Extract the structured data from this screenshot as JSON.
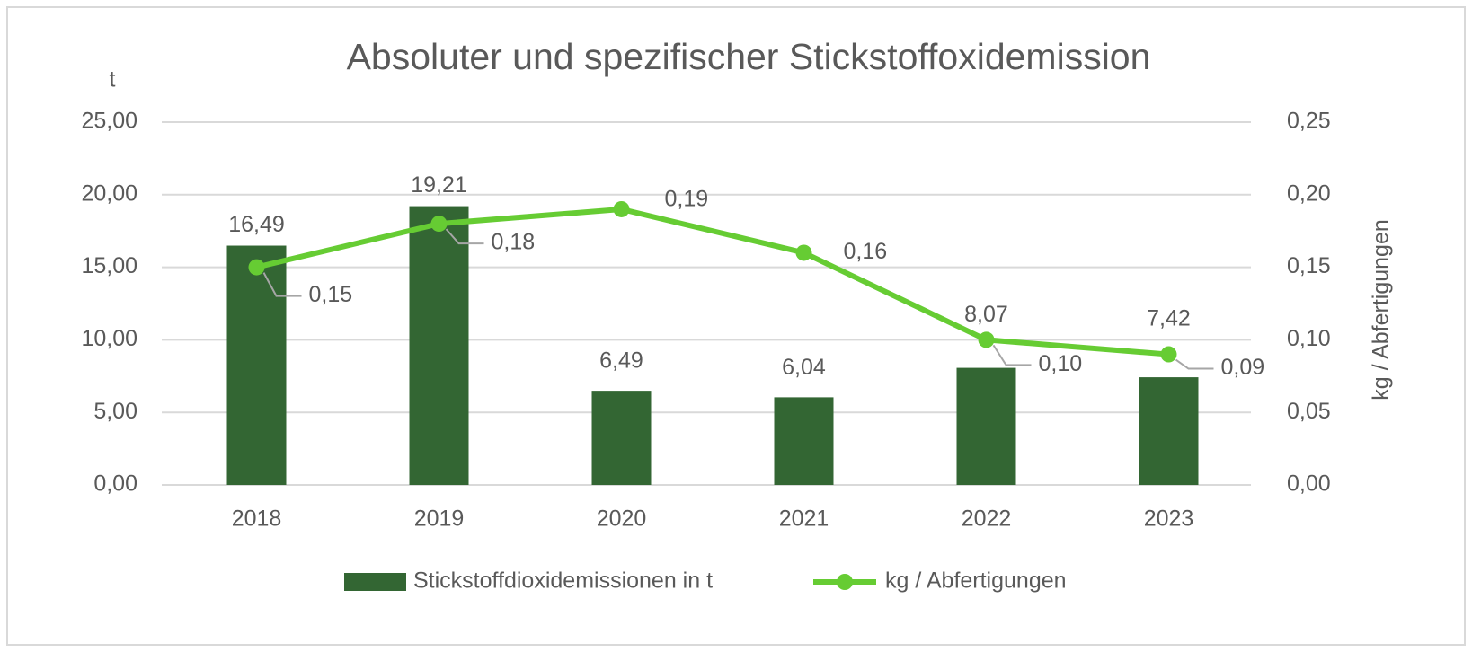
{
  "chart_data": {
    "type": "bar-line",
    "title": "Absoluter und spezifischer Stickstoffoxidemission",
    "y_label": "t",
    "y2_label": "kg / Abfertigungen",
    "categories": [
      "2018",
      "2019",
      "2020",
      "2021",
      "2022",
      "2023"
    ],
    "series": [
      {
        "name": "Stickstoffdioxidemissionen in t",
        "type": "bar",
        "color": "#336633",
        "values": [
          16.49,
          19.21,
          6.49,
          6.04,
          8.07,
          7.42
        ],
        "value_labels": [
          "16,49",
          "19,21",
          "6,49",
          "6,04",
          "8,07",
          "7,42"
        ]
      },
      {
        "name": "kg / Abfertigungen",
        "type": "line",
        "axis": "y2",
        "color": "#66cc33",
        "values": [
          0.15,
          0.18,
          0.19,
          0.16,
          0.1,
          0.09
        ],
        "value_labels": [
          "0,15",
          "0,18",
          "0,19",
          "0,16",
          "0,10",
          "0,09"
        ]
      }
    ],
    "ylim": [
      0,
      25
    ],
    "yticks": [
      {
        "value": 0,
        "label": "0,00"
      },
      {
        "value": 5,
        "label": "5,00"
      },
      {
        "value": 10,
        "label": "10,00"
      },
      {
        "value": 15,
        "label": "15,00"
      },
      {
        "value": 20,
        "label": "20,00"
      },
      {
        "value": 25,
        "label": "25,00"
      }
    ],
    "y2lim": [
      0,
      0.25
    ],
    "y2ticks": [
      {
        "value": 0,
        "label": "0,00"
      },
      {
        "value": 0.05,
        "label": "0,05"
      },
      {
        "value": 0.1,
        "label": "0,10"
      },
      {
        "value": 0.15,
        "label": "0,15"
      },
      {
        "value": 0.2,
        "label": "0,20"
      },
      {
        "value": 0.25,
        "label": "0,25"
      }
    ],
    "grid": true,
    "legend": "bottom"
  }
}
